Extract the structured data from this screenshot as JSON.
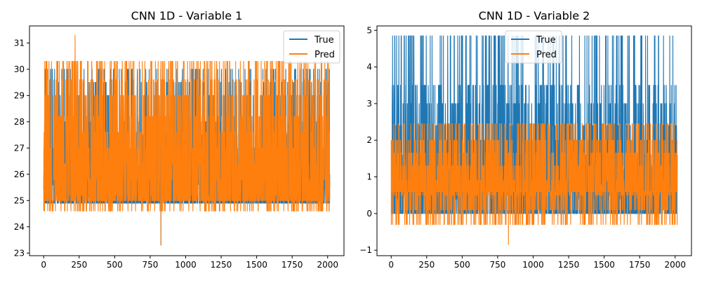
{
  "figure": {
    "background": "#ffffff"
  },
  "chart_data": [
    {
      "type": "line",
      "title": "CNN 1D - Variable 1",
      "xlabel": "",
      "ylabel": "",
      "xlim": [
        -100,
        2115
      ],
      "ylim": [
        22.9,
        31.65
      ],
      "x_ticks": [
        0,
        250,
        500,
        750,
        1000,
        1250,
        1500,
        1750,
        2000
      ],
      "y_ticks": [
        23,
        24,
        25,
        26,
        27,
        28,
        29,
        30,
        31
      ],
      "grid": false,
      "legend": {
        "placement": "top-right",
        "entries": [
          "True",
          "Pred"
        ]
      },
      "n_points": 2016,
      "series": [
        {
          "name": "True",
          "color": "#1f77b4",
          "baseline": 24.9,
          "levels": [
            24.9,
            25.1,
            25.4,
            25.6,
            26.0,
            26.3,
            26.6,
            27.0,
            27.5,
            28.0,
            29.0,
            29.5,
            30.0
          ],
          "min": 23.3,
          "max": 30.0
        },
        {
          "name": "Pred",
          "color": "#ff7f0e",
          "baseline": 25.0,
          "levels": [
            24.6,
            25.2,
            25.8,
            26.4,
            27.0,
            27.6,
            28.2,
            29.0,
            29.6,
            30.3
          ],
          "min": 23.3,
          "max": 31.3
        }
      ]
    },
    {
      "type": "line",
      "title": "CNN 1D - Variable 2",
      "xlabel": "",
      "ylabel": "",
      "xlim": [
        -100,
        2115
      ],
      "ylim": [
        -1.15,
        5.12
      ],
      "x_ticks": [
        0,
        250,
        500,
        750,
        1000,
        1250,
        1500,
        1750,
        2000
      ],
      "y_ticks": [
        -1,
        0,
        1,
        2,
        3,
        4,
        5
      ],
      "grid": false,
      "legend": {
        "placement": "top-center",
        "entries": [
          "True",
          "Pred"
        ]
      },
      "n_points": 2016,
      "series": [
        {
          "name": "True",
          "color": "#1f77b4",
          "baseline": 0.0,
          "levels": [
            0.0,
            0.4,
            0.8,
            1.2,
            1.6,
            2.0,
            2.4,
            3.0,
            3.5,
            4.85
          ],
          "min": 0.0,
          "max": 4.85
        },
        {
          "name": "Pred",
          "color": "#ff7f0e",
          "baseline": 0.6,
          "levels": [
            -0.3,
            0.1,
            0.5,
            0.9,
            1.3,
            1.65,
            2.0,
            2.45
          ],
          "min": -0.85,
          "max": 2.45
        }
      ]
    }
  ]
}
